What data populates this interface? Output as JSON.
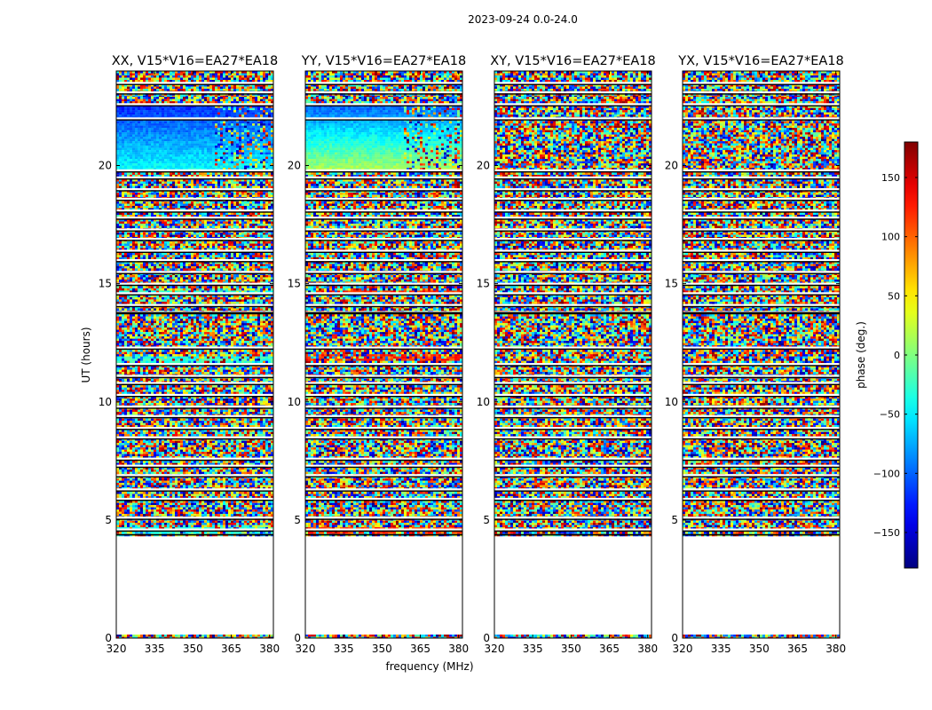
{
  "chart_data": {
    "type": "heatmap",
    "suptitle": "2023-09-24 0.0-24.0",
    "xlabel": "frequency (MHz)",
    "ylabel": "UT (hours)",
    "xlim": [
      320,
      381.5
    ],
    "ylim": [
      0,
      24
    ],
    "xticks": [
      "320",
      "335",
      "350",
      "365",
      "380"
    ],
    "yticks": [
      "0",
      "5",
      "10",
      "15",
      "20"
    ],
    "panels": [
      {
        "title": "XX, V15*V16=EA27*EA18",
        "coherent_bands": [
          [
            19.75,
            22.55
          ]
        ],
        "coherent_base": [
          -120,
          -40
        ],
        "tint_bands": [
          [
            11.6,
            12.0
          ],
          [
            4.5,
            4.7
          ],
          [
            14.6,
            14.8
          ]
        ]
      },
      {
        "title": "YY, V15*V16=EA27*EA18",
        "coherent_bands": [
          [
            19.75,
            22.55
          ]
        ],
        "coherent_base": [
          -100,
          20
        ],
        "tint_bands": [
          [
            11.8,
            12.1
          ],
          [
            4.5,
            4.7
          ],
          [
            14.6,
            14.8
          ]
        ]
      },
      {
        "title": "XY, V15*V16=EA27*EA18",
        "coherent_bands": [],
        "coherent_base": [],
        "tint_bands": []
      },
      {
        "title": "YX, V15*V16=EA27*EA18",
        "coherent_bands": [],
        "coherent_base": [],
        "tint_bands": []
      }
    ],
    "data_rows_hours": [
      [
        0.0,
        0.15
      ],
      [
        4.4,
        13.8
      ],
      [
        13.8,
        16.4
      ],
      [
        16.4,
        19.7
      ],
      [
        19.7,
        23.0
      ],
      [
        23.05,
        24.0
      ]
    ],
    "gap_lines_hours": [
      4.6,
      5.1,
      5.9,
      6.3,
      6.9,
      7.3,
      7.6,
      8.5,
      8.9,
      9.4,
      9.8,
      10.3,
      10.8,
      11.1,
      11.6,
      12.3,
      13.8,
      14.1,
      14.6,
      15.0,
      15.5,
      16.0,
      16.4,
      16.9,
      17.3,
      17.8,
      18.1,
      18.6,
      19.0,
      19.5,
      19.8,
      22.0,
      22.6,
      23.1,
      23.5
    ],
    "colorbar": {
      "label": "phase (deg.)",
      "range": [
        -180,
        180
      ],
      "ticks": [
        {
          "value": 150,
          "label": "150"
        },
        {
          "value": 100,
          "label": "100"
        },
        {
          "value": 50,
          "label": "50"
        },
        {
          "value": 0,
          "label": "0"
        },
        {
          "value": -50,
          "label": "−50"
        },
        {
          "value": -100,
          "label": "−100"
        },
        {
          "value": -150,
          "label": "−150"
        }
      ],
      "colormap": "jet"
    }
  }
}
